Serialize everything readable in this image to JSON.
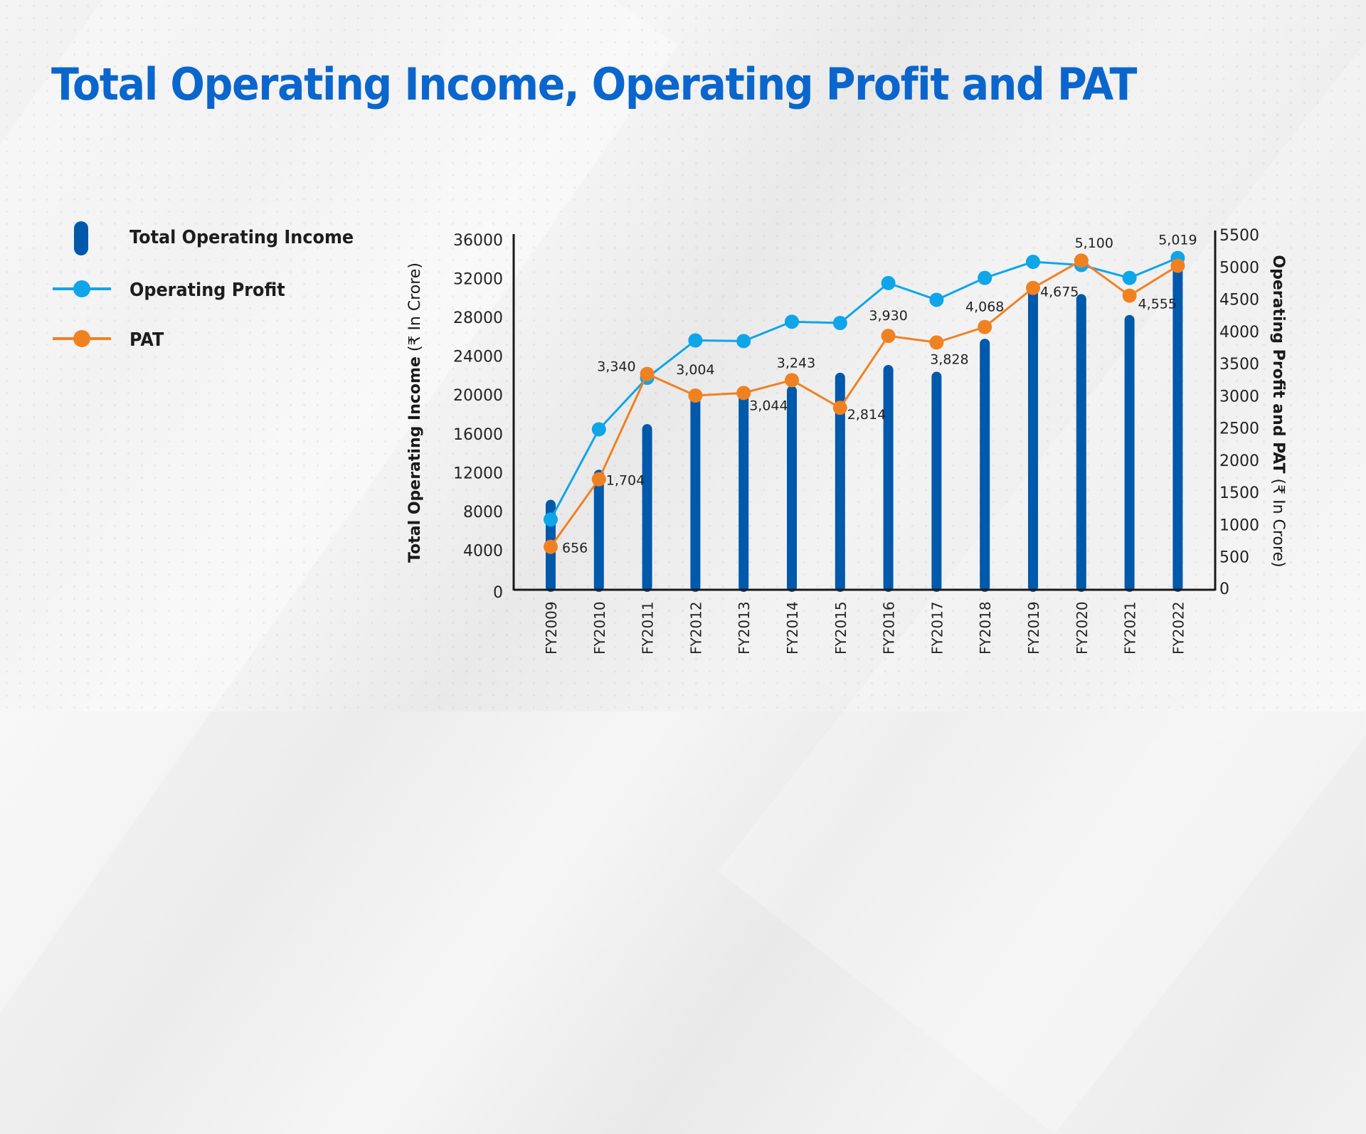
{
  "title": "Total Operating Income, Operating Profit and PAT",
  "legend": {
    "items": [
      {
        "label": "Total Operating Income",
        "icon": "bar-swatch-icon",
        "color": "#0059ab"
      },
      {
        "label": "Operating Profit",
        "icon": "line-dot-swatch-icon",
        "color": "#0ea5e9"
      },
      {
        "label": "PAT",
        "icon": "line-dot-swatch-icon",
        "color": "#f08121"
      }
    ]
  },
  "axes": {
    "left_title_bold": "Total Operating Income",
    "left_title_unit": " (₹ In Crore)",
    "right_title_bold": "Operating Profit and PAT",
    "right_title_unit": " (₹ In Crore)"
  },
  "colors": {
    "title": "#0a66cc",
    "bar": "#0059ab",
    "operating_profit": "#0ea5e9",
    "pat": "#f08121",
    "axis": "#1a1a1a",
    "text": "#222222"
  },
  "chart_data": {
    "type": "bar+line",
    "title": "Total Operating Income, Operating Profit and PAT",
    "categories": [
      "FY2009",
      "FY2010",
      "FY2011",
      "FY2012",
      "FY2013",
      "FY2014",
      "FY2015",
      "FY2016",
      "FY2017",
      "FY2018",
      "FY2019",
      "FY2020",
      "FY2021",
      "FY2022"
    ],
    "series": [
      {
        "name": "Total Operating Income",
        "type": "bar",
        "axis": "left",
        "values": [
          9200,
          12300,
          17000,
          20200,
          20200,
          20950,
          22300,
          23100,
          22400,
          25800,
          31200,
          30400,
          28250,
          33700
        ]
      },
      {
        "name": "Operating Profit",
        "type": "line",
        "axis": "right",
        "values": [
          1080,
          2480,
          3280,
          3860,
          3850,
          4150,
          4130,
          4750,
          4490,
          4830,
          5080,
          5030,
          4830,
          5140
        ]
      },
      {
        "name": "PAT",
        "type": "line",
        "axis": "right",
        "values": [
          656,
          1704,
          3340,
          3004,
          3044,
          3243,
          2814,
          3930,
          3828,
          4068,
          4675,
          5100,
          4555,
          5019
        ],
        "data_labels": [
          "656",
          "1,704",
          "3,340",
          "3,004",
          "3,044",
          "3,243",
          "2,814",
          "3,930",
          "3,828",
          "4,068",
          "4,675",
          "5,100",
          "4,555",
          "5,019"
        ]
      }
    ],
    "left_axis": {
      "label": "Total Operating Income (₹ In Crore)",
      "ylim": [
        0,
        36000
      ],
      "ticks": [
        "0",
        "4000",
        "8000",
        "12000",
        "16000",
        "20000",
        "24000",
        "28000",
        "32000",
        "36000"
      ]
    },
    "right_axis": {
      "label": "Operating Profit and PAT (₹ In Crore)",
      "ylim": [
        0,
        5500
      ],
      "ticks": [
        "0",
        "500",
        "1000",
        "1500",
        "2000",
        "2500",
        "3000",
        "3500",
        "4000",
        "4500",
        "5000",
        "5500"
      ]
    },
    "xlabel": "",
    "grid": false,
    "legend_position": "left"
  }
}
